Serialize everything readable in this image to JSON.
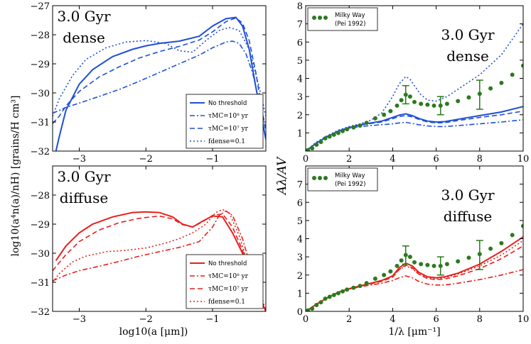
{
  "colors": {
    "blue": "#1f4fd6",
    "red": "#e8201c",
    "green": "#2b7a1e"
  },
  "chart_data": [
    {
      "id": "top-left",
      "type": "line",
      "annotation": [
        "3.0 Gyr",
        "dense"
      ],
      "xlim": [
        -3.4,
        -0.2
      ],
      "ylim": [
        -32,
        -27
      ],
      "xticks": [
        -3,
        -2,
        -1
      ],
      "xticklabels": [
        "−3",
        "−2",
        "−1"
      ],
      "yticks": [
        -32,
        -31,
        -30,
        -29,
        -28,
        -27
      ],
      "yticklabels": [
        "−32",
        "−31",
        "−30",
        "−29",
        "−28",
        "−27"
      ],
      "legend": {
        "position": "lower-right"
      },
      "series": [
        {
          "name": "No threshold",
          "style": "solid",
          "color": "blue",
          "x": [
            -3.35,
            -3.3,
            -3.2,
            -3.0,
            -2.8,
            -2.5,
            -2.2,
            -2.0,
            -1.8,
            -1.5,
            -1.2,
            -1.0,
            -0.8,
            -0.65,
            -0.55,
            -0.45,
            -0.35,
            -0.25,
            -0.2
          ],
          "y": [
            -32.0,
            -31.5,
            -30.6,
            -29.7,
            -29.2,
            -28.75,
            -28.5,
            -28.38,
            -28.3,
            -28.22,
            -28.05,
            -27.7,
            -27.45,
            -27.4,
            -27.7,
            -28.5,
            -29.8,
            -31.0,
            -31.6
          ]
        },
        {
          "name": "τ_MC=10^8 yr",
          "style": "dashdot",
          "color": "blue",
          "x": [
            -3.4,
            -3.2,
            -3.0,
            -2.7,
            -2.4,
            -2.1,
            -1.8,
            -1.5,
            -1.2,
            -1.0,
            -0.8,
            -0.7,
            -0.6,
            -0.5,
            -0.4,
            -0.3,
            -0.22
          ],
          "y": [
            -30.7,
            -30.5,
            -30.35,
            -30.12,
            -29.88,
            -29.6,
            -29.3,
            -29.0,
            -28.7,
            -28.45,
            -28.25,
            -28.22,
            -28.3,
            -28.65,
            -29.3,
            -30.3,
            -31.0
          ]
        },
        {
          "name": "τ_MC=10^7 yr",
          "style": "dashed",
          "color": "blue",
          "x": [
            -3.4,
            -3.3,
            -3.2,
            -3.0,
            -2.7,
            -2.4,
            -2.1,
            -1.8,
            -1.5,
            -1.2,
            -1.0,
            -0.8,
            -0.65,
            -0.55,
            -0.45,
            -0.35,
            -0.25,
            -0.2
          ],
          "y": [
            -31.05,
            -30.8,
            -30.45,
            -29.95,
            -29.45,
            -29.1,
            -28.8,
            -28.58,
            -28.4,
            -28.18,
            -27.9,
            -27.55,
            -27.42,
            -27.6,
            -28.2,
            -29.3,
            -30.7,
            -31.3
          ]
        },
        {
          "name": "f_dense=0.1",
          "style": "dotted",
          "color": "blue",
          "x": [
            -3.4,
            -3.3,
            -3.1,
            -2.9,
            -2.6,
            -2.3,
            -2.0,
            -1.7,
            -1.5,
            -1.3,
            -1.1,
            -0.9,
            -0.75,
            -0.6,
            -0.45,
            -0.3,
            -0.2
          ],
          "y": [
            -30.8,
            -30.2,
            -29.4,
            -28.85,
            -28.45,
            -28.25,
            -28.2,
            -28.3,
            -28.55,
            -28.6,
            -28.2,
            -27.85,
            -27.75,
            -27.85,
            -28.5,
            -29.8,
            -30.8
          ]
        }
      ]
    },
    {
      "id": "bottom-left",
      "type": "line",
      "annotation": [
        "3.0 Gyr",
        "diffuse"
      ],
      "xlim": [
        -3.4,
        -0.2
      ],
      "ylim": [
        -32,
        -27
      ],
      "xticks": [
        -3,
        -2,
        -1
      ],
      "xticklabels": [
        "−3",
        "−2",
        "−1"
      ],
      "yticks": [
        -32,
        -31,
        -30,
        -29,
        -28,
        -27
      ],
      "yticklabels": [
        "−32",
        "−31",
        "−30",
        "−29",
        "−28",
        ""
      ],
      "xlabel": "log10(a [μm])",
      "legend": {
        "position": "lower-right"
      },
      "series": [
        {
          "name": "No threshold",
          "style": "solid",
          "color": "red",
          "x": [
            -3.35,
            -3.2,
            -3.0,
            -2.8,
            -2.5,
            -2.2,
            -2.0,
            -1.8,
            -1.6,
            -1.45,
            -1.3,
            -1.15,
            -1.0,
            -0.85,
            -0.7,
            -0.55,
            -0.45,
            -0.3,
            -0.2
          ],
          "y": [
            -30.25,
            -29.75,
            -29.3,
            -29.0,
            -28.75,
            -28.6,
            -28.58,
            -28.6,
            -28.75,
            -29.0,
            -29.1,
            -28.9,
            -28.72,
            -28.75,
            -29.3,
            -30.0,
            -30.7,
            -31.5,
            -32.0
          ]
        },
        {
          "name": "τ_MC=10^8 yr",
          "style": "dashdot",
          "color": "red",
          "x": [
            -3.4,
            -3.2,
            -3.0,
            -2.7,
            -2.4,
            -2.1,
            -1.8,
            -1.5,
            -1.2,
            -1.0,
            -0.9,
            -0.8,
            -0.7,
            -0.55,
            -0.45,
            -0.35,
            -0.25,
            -0.2
          ],
          "y": [
            -30.95,
            -30.75,
            -30.6,
            -30.45,
            -30.28,
            -30.1,
            -29.95,
            -29.8,
            -29.6,
            -29.1,
            -28.7,
            -28.55,
            -28.7,
            -29.5,
            -30.3,
            -31.0,
            -31.6,
            -32.0
          ]
        },
        {
          "name": "τ_MC=10^7 yr",
          "style": "dashed",
          "color": "red",
          "x": [
            -3.4,
            -3.2,
            -3.0,
            -2.7,
            -2.4,
            -2.1,
            -1.8,
            -1.6,
            -1.45,
            -1.3,
            -1.15,
            -1.0,
            -0.85,
            -0.7,
            -0.55,
            -0.45,
            -0.3,
            -0.2
          ],
          "y": [
            -30.6,
            -30.05,
            -29.6,
            -29.2,
            -28.95,
            -28.8,
            -28.72,
            -28.82,
            -29.02,
            -29.1,
            -28.92,
            -28.7,
            -28.65,
            -29.1,
            -29.9,
            -30.6,
            -31.5,
            -32.0
          ]
        },
        {
          "name": "f_dense=0.1",
          "style": "dotted",
          "color": "red",
          "x": [
            -3.4,
            -3.3,
            -3.1,
            -2.9,
            -2.6,
            -2.3,
            -2.0,
            -1.7,
            -1.5,
            -1.3,
            -1.1,
            -0.95,
            -0.85,
            -0.75,
            -0.6,
            -0.45,
            -0.3,
            -0.2
          ],
          "y": [
            -31.0,
            -30.7,
            -30.3,
            -30.1,
            -29.95,
            -29.9,
            -29.82,
            -29.65,
            -29.5,
            -29.3,
            -29.0,
            -28.6,
            -28.5,
            -28.6,
            -29.4,
            -30.5,
            -31.5,
            -32.0
          ]
        }
      ]
    },
    {
      "id": "top-right",
      "type": "line",
      "annotation": [
        "3.0 Gyr",
        "dense"
      ],
      "xlim": [
        0,
        10
      ],
      "ylim": [
        0,
        8
      ],
      "xticks": [
        0,
        2,
        4,
        6,
        8,
        10
      ],
      "xticklabels": [
        "0",
        "2",
        "4",
        "6",
        "8",
        "10"
      ],
      "yticks": [
        0,
        1,
        2,
        3,
        4,
        5,
        6,
        7,
        8
      ],
      "yticklabels": [
        "",
        "1",
        "2",
        "3",
        "4",
        "5",
        "6",
        "7",
        "8"
      ],
      "legend": {
        "position": "top-left",
        "entries": [
          "Milky Way",
          "(Pei 1992)"
        ]
      },
      "series": [
        {
          "name": "No threshold",
          "style": "solid",
          "color": "blue",
          "x": [
            0,
            0.5,
            1,
            1.5,
            2,
            2.5,
            3,
            3.5,
            4,
            4.3,
            4.6,
            4.9,
            5.2,
            5.6,
            6,
            6.4,
            7,
            8,
            9,
            10
          ],
          "y": [
            0,
            0.45,
            0.8,
            1.1,
            1.3,
            1.45,
            1.55,
            1.65,
            1.85,
            1.98,
            2.05,
            1.95,
            1.8,
            1.65,
            1.6,
            1.62,
            1.75,
            1.95,
            2.15,
            2.45
          ]
        },
        {
          "name": "τ_MC=10^8 yr",
          "style": "dashdot",
          "color": "blue",
          "x": [
            0,
            0.5,
            1,
            1.5,
            2,
            2.5,
            3,
            3.5,
            4,
            4.3,
            4.6,
            4.9,
            5.2,
            5.6,
            6,
            6.4,
            7,
            8,
            9,
            10
          ],
          "y": [
            0,
            0.45,
            0.8,
            1.1,
            1.25,
            1.35,
            1.4,
            1.45,
            1.5,
            1.55,
            1.58,
            1.52,
            1.45,
            1.38,
            1.35,
            1.35,
            1.4,
            1.5,
            1.6,
            1.72
          ]
        },
        {
          "name": "τ_MC=10^7 yr",
          "style": "dashed",
          "color": "blue",
          "x": [
            0,
            0.5,
            1,
            1.5,
            2,
            2.5,
            3,
            3.5,
            4,
            4.3,
            4.6,
            4.9,
            5.2,
            5.6,
            6,
            6.4,
            7,
            8,
            9,
            10
          ],
          "y": [
            0,
            0.45,
            0.8,
            1.1,
            1.3,
            1.43,
            1.52,
            1.6,
            1.78,
            1.9,
            1.95,
            1.88,
            1.75,
            1.6,
            1.55,
            1.56,
            1.68,
            1.85,
            2.0,
            2.2
          ]
        },
        {
          "name": "f_dense=0.1",
          "style": "dotted",
          "color": "blue",
          "x": [
            0,
            0.5,
            1,
            1.5,
            2,
            2.5,
            3,
            3.5,
            4,
            4.3,
            4.6,
            4.8,
            5.0,
            5.3,
            5.6,
            6,
            6.5,
            7,
            8,
            9,
            10
          ],
          "y": [
            0,
            0.5,
            0.85,
            1.15,
            1.35,
            1.5,
            1.7,
            2.1,
            3.0,
            3.7,
            4.1,
            3.95,
            3.6,
            3.1,
            2.8,
            2.75,
            3.0,
            3.4,
            4.2,
            5.3,
            7.0
          ]
        }
      ],
      "milky_way": {
        "x": [
          0.1,
          0.3,
          0.5,
          0.7,
          0.9,
          1.1,
          1.3,
          1.5,
          1.7,
          1.9,
          2.2,
          2.5,
          2.8,
          3.2,
          3.6,
          3.9,
          4.2,
          4.4,
          4.6,
          4.8,
          5.0,
          5.3,
          5.6,
          5.9,
          6.2,
          6.5,
          7.0,
          7.5,
          8.0,
          8.5,
          9.0,
          9.5,
          10.0
        ],
        "y": [
          0.05,
          0.15,
          0.35,
          0.5,
          0.7,
          0.8,
          0.9,
          1.0,
          1.1,
          1.2,
          1.3,
          1.4,
          1.55,
          1.8,
          2.0,
          2.2,
          2.5,
          2.8,
          3.1,
          3.0,
          2.7,
          2.6,
          2.55,
          2.5,
          2.5,
          2.6,
          2.75,
          2.95,
          3.15,
          3.45,
          3.75,
          4.2,
          4.7
        ]
      },
      "error_bars": [
        {
          "x": 4.6,
          "y": 3.1,
          "lo": 2.6,
          "hi": 3.6
        },
        {
          "x": 6.2,
          "y": 2.5,
          "lo": 2.0,
          "hi": 3.0
        },
        {
          "x": 8.0,
          "y": 3.1,
          "lo": 2.3,
          "hi": 3.9
        }
      ]
    },
    {
      "id": "bottom-right",
      "type": "line",
      "annotation": [
        "3.0 Gyr",
        "diffuse"
      ],
      "xlim": [
        0,
        10
      ],
      "ylim": [
        0,
        8
      ],
      "xticks": [
        0,
        2,
        4,
        6,
        8,
        10
      ],
      "xticklabels": [
        "0",
        "2",
        "4",
        "6",
        "8",
        "10"
      ],
      "yticks": [
        0,
        1,
        2,
        3,
        4,
        5,
        6,
        7,
        8
      ],
      "yticklabels": [
        "0",
        "1",
        "2",
        "3",
        "4",
        "5",
        "6",
        "7",
        ""
      ],
      "xlabel": "1/λ [μm⁻¹]",
      "legend": {
        "position": "top-left",
        "entries": [
          "Milky Way",
          "(Pei 1992)"
        ]
      },
      "series": [
        {
          "name": "No threshold",
          "style": "solid",
          "color": "red",
          "x": [
            0,
            0.5,
            1,
            1.5,
            2,
            2.5,
            3,
            3.5,
            4,
            4.3,
            4.6,
            4.9,
            5.2,
            5.6,
            6,
            6.4,
            7,
            8,
            9,
            10
          ],
          "y": [
            0,
            0.4,
            0.75,
            1.05,
            1.25,
            1.4,
            1.55,
            1.7,
            1.95,
            2.4,
            2.65,
            2.5,
            2.15,
            1.9,
            1.85,
            1.9,
            2.1,
            2.6,
            3.3,
            4.1
          ]
        },
        {
          "name": "τ_MC=10^8 yr",
          "style": "dashdot",
          "color": "red",
          "x": [
            0,
            0.5,
            1,
            1.5,
            2,
            2.5,
            3,
            3.5,
            4,
            4.3,
            4.6,
            4.9,
            5.2,
            5.6,
            6,
            6.4,
            7,
            8,
            9,
            10
          ],
          "y": [
            0,
            0.4,
            0.75,
            1.05,
            1.22,
            1.35,
            1.45,
            1.55,
            1.7,
            1.85,
            1.95,
            1.85,
            1.65,
            1.5,
            1.45,
            1.45,
            1.55,
            1.75,
            2.0,
            2.3
          ]
        },
        {
          "name": "τ_MC=10^7 yr",
          "style": "dashed",
          "color": "red",
          "x": [
            0,
            0.5,
            1,
            1.5,
            2,
            2.5,
            3,
            3.5,
            4,
            4.3,
            4.6,
            4.9,
            5.2,
            5.6,
            6,
            6.4,
            7,
            8,
            9,
            10
          ],
          "y": [
            0,
            0.4,
            0.75,
            1.05,
            1.24,
            1.38,
            1.52,
            1.65,
            1.88,
            2.3,
            2.55,
            2.4,
            2.05,
            1.8,
            1.75,
            1.78,
            1.95,
            2.35,
            2.9,
            3.6
          ]
        },
        {
          "name": "f_dense=0.1",
          "style": "dotted",
          "color": "red",
          "x": [
            0,
            0.5,
            1,
            1.5,
            2,
            2.5,
            3,
            3.5,
            4,
            4.3,
            4.6,
            4.9,
            5.2,
            5.6,
            6,
            6.4,
            7,
            8,
            9,
            10
          ],
          "y": [
            0,
            0.4,
            0.75,
            1.05,
            1.25,
            1.4,
            1.55,
            1.7,
            1.95,
            2.3,
            2.5,
            2.35,
            2.05,
            1.85,
            1.8,
            1.85,
            2.05,
            2.5,
            3.1,
            3.9
          ]
        }
      ],
      "milky_way": {
        "x": [
          0.1,
          0.3,
          0.5,
          0.7,
          0.9,
          1.1,
          1.3,
          1.5,
          1.7,
          1.9,
          2.2,
          2.5,
          2.8,
          3.2,
          3.6,
          3.9,
          4.2,
          4.4,
          4.6,
          4.8,
          5.0,
          5.3,
          5.6,
          5.9,
          6.2,
          6.5,
          7.0,
          7.5,
          8.0,
          8.5,
          9.0,
          9.5,
          10.0
        ],
        "y": [
          0.05,
          0.15,
          0.35,
          0.5,
          0.7,
          0.8,
          0.9,
          1.0,
          1.1,
          1.2,
          1.3,
          1.4,
          1.55,
          1.8,
          2.0,
          2.2,
          2.5,
          2.8,
          3.1,
          3.0,
          2.7,
          2.6,
          2.55,
          2.5,
          2.5,
          2.6,
          2.75,
          2.95,
          3.15,
          3.45,
          3.75,
          4.2,
          4.7
        ]
      },
      "error_bars": [
        {
          "x": 4.6,
          "y": 3.1,
          "lo": 2.6,
          "hi": 3.6
        },
        {
          "x": 6.2,
          "y": 2.5,
          "lo": 2.0,
          "hi": 3.0
        },
        {
          "x": 8.0,
          "y": 3.1,
          "lo": 2.3,
          "hi": 3.9
        }
      ]
    }
  ],
  "labels": {
    "left_ylabel": "log10(a⁴n(a)/nH) [grains/H cm³]",
    "right_ylabel": "Aλ/AV",
    "legend_no_threshold": "No threshold",
    "legend_tau8": "τMC=10⁸ yr",
    "legend_tau7": "τMC=10⁷ yr",
    "legend_fdense": "fdense=0.1",
    "mw_name": "Milky Way",
    "mw_ref": "(Pei 1992)"
  }
}
